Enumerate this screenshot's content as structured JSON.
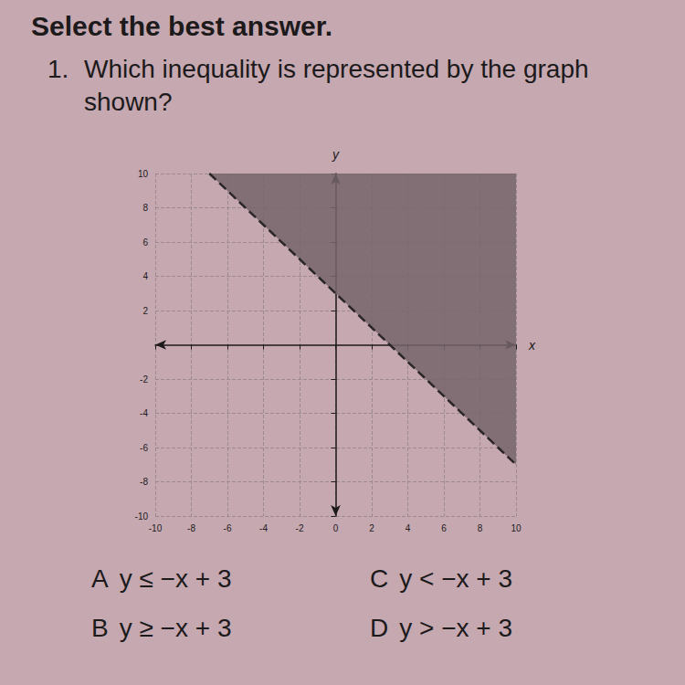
{
  "header": {
    "title": "Select the best answer."
  },
  "question": {
    "number": "1.",
    "text": "Which inequality is represented by the graph shown?"
  },
  "choices": [
    {
      "letter": "A",
      "text": "y ≤ −x + 3"
    },
    {
      "letter": "B",
      "text": "y ≥ −x + 3"
    },
    {
      "letter": "C",
      "text": "y < −x + 3"
    },
    {
      "letter": "D",
      "text": "y > −x + 3"
    }
  ],
  "chart_data": {
    "type": "inequality",
    "x_label": "x",
    "y_label": "y",
    "x": [
      -7,
      10
    ],
    "values": [
      10,
      -7
    ],
    "color": "#75656b",
    "line_style": "dashed",
    "xlim": [
      -10,
      10
    ],
    "ylim": [
      -10,
      10
    ],
    "xticks": [
      -10,
      -8,
      -6,
      -4,
      -2,
      0,
      2,
      4,
      6,
      8,
      10
    ],
    "yticks": [
      -10,
      -8,
      -6,
      -4,
      -2,
      2,
      4,
      6,
      8,
      10
    ],
    "grid": true
  }
}
